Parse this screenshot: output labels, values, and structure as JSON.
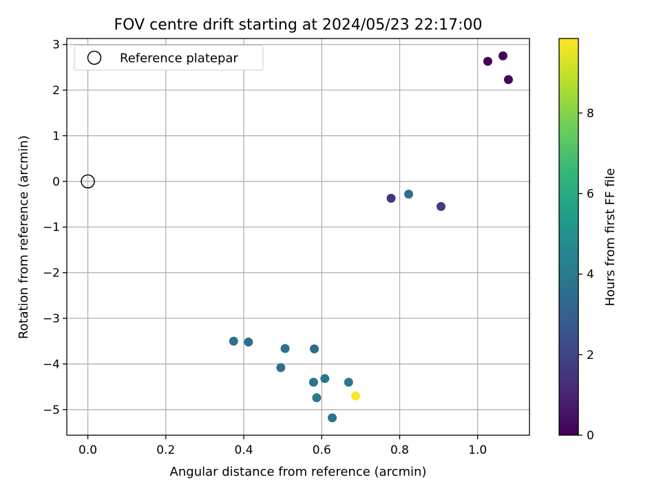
{
  "chart_data": {
    "type": "scatter",
    "title": "FOV centre drift starting at 2024/05/23 22:17:00",
    "xlabel": "Angular distance from reference (arcmin)",
    "ylabel": "Rotation from reference (arcmin)",
    "xlim": [
      -0.054,
      1.133
    ],
    "ylim": [
      -5.56,
      3.13
    ],
    "xticks": [
      0.0,
      0.2,
      0.4,
      0.6,
      0.8,
      1.0
    ],
    "yticks": [
      -5,
      -4,
      -3,
      -2,
      -1,
      0,
      1,
      2,
      3
    ],
    "xtick_labels": [
      "0.0",
      "0.2",
      "0.4",
      "0.6",
      "0.8",
      "1.0"
    ],
    "ytick_labels": [
      "−5",
      "−4",
      "−3",
      "−2",
      "−1",
      "0",
      "1",
      "2",
      "3"
    ],
    "grid": true,
    "legend": {
      "placement": "top-left",
      "label": "Reference platepar"
    },
    "reference_point": {
      "x": 0.0,
      "y": 0.0
    },
    "colorbar": {
      "label": "Hours from first FF file",
      "colormap": "viridis",
      "range": [
        0,
        9.85
      ],
      "ticks": [
        0,
        2,
        4,
        6,
        8
      ],
      "tick_labels": [
        "0",
        "2",
        "4",
        "6",
        "8"
      ]
    },
    "points": [
      {
        "x": 1.026,
        "y": 2.63,
        "hours": 0.0
      },
      {
        "x": 1.065,
        "y": 2.75,
        "hours": 0.1
      },
      {
        "x": 1.079,
        "y": 2.23,
        "hours": 0.2
      },
      {
        "x": 0.778,
        "y": -0.37,
        "hours": 1.5
      },
      {
        "x": 0.906,
        "y": -0.55,
        "hours": 1.8
      },
      {
        "x": 0.823,
        "y": -0.28,
        "hours": 3.6
      },
      {
        "x": 0.374,
        "y": -3.5,
        "hours": 3.6
      },
      {
        "x": 0.412,
        "y": -3.52,
        "hours": 3.5
      },
      {
        "x": 0.506,
        "y": -3.66,
        "hours": 3.6
      },
      {
        "x": 0.581,
        "y": -3.67,
        "hours": 3.5
      },
      {
        "x": 0.495,
        "y": -4.08,
        "hours": 3.6
      },
      {
        "x": 0.579,
        "y": -4.4,
        "hours": 3.7
      },
      {
        "x": 0.608,
        "y": -4.32,
        "hours": 3.8
      },
      {
        "x": 0.669,
        "y": -4.4,
        "hours": 3.9
      },
      {
        "x": 0.587,
        "y": -4.74,
        "hours": 4.0
      },
      {
        "x": 0.627,
        "y": -5.18,
        "hours": 3.8
      },
      {
        "x": 0.687,
        "y": -4.7,
        "hours": 9.85
      }
    ]
  }
}
